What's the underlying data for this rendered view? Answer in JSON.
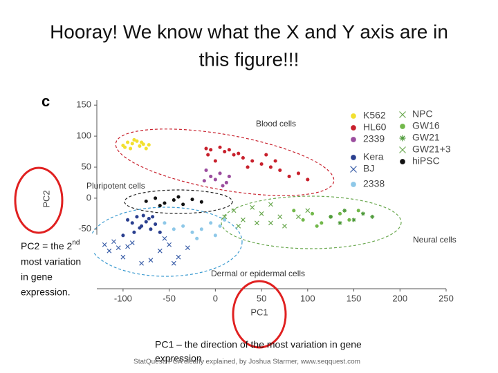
{
  "slide": {
    "title": [
      "Hooray!  We know what the X and Y axis are in",
      "this figure!!!"
    ],
    "left_note": {
      "pre": "PC2 = the 2",
      "sup": "nd",
      "lines": [
        "most variation",
        "in gene",
        "expression."
      ]
    },
    "bottom_note": [
      "PC1 – the direction of the most variation in gene",
      "expression."
    ],
    "footer": "StatQuest: PCA clearly explained, by Joshua Starmer, www.seqquest.com"
  },
  "chart_data": {
    "type": "scatter",
    "panel_label": "c",
    "x_label": "PC1",
    "y_label": "PC2",
    "annotations": [
      "Blood cells",
      "Pluripotent cells",
      "Neural cells",
      "Dermal or epidermal cells"
    ],
    "xlim": [
      -128.4,
      250
    ],
    "ylim": [
      -146,
      158
    ],
    "xticks": [
      -100,
      -50,
      0,
      50,
      100,
      150,
      200,
      250
    ],
    "yticks": [
      150,
      100,
      50,
      0,
      -50
    ],
    "series": [
      {
        "name": "K562",
        "color": "#f2e030",
        "marker": "dot",
        "x": [
          -100,
          -95,
          -90,
          -85,
          -82,
          -78,
          -75,
          -92,
          -88,
          -80,
          -72,
          -98
        ],
        "y": [
          85,
          90,
          88,
          92,
          84,
          87,
          80,
          80,
          94,
          90,
          86,
          82
        ]
      },
      {
        "name": "HL60",
        "color": "#c8202c",
        "marker": "dot",
        "x": [
          -10,
          -5,
          5,
          10,
          15,
          20,
          25,
          -8,
          30,
          40,
          50,
          60,
          70,
          80,
          90,
          100,
          55,
          65,
          0,
          35
        ],
        "y": [
          80,
          78,
          82,
          75,
          78,
          70,
          72,
          70,
          65,
          60,
          55,
          50,
          45,
          35,
          40,
          30,
          70,
          60,
          60,
          50
        ]
      },
      {
        "name": "2339",
        "color": "#9b4d9e",
        "marker": "dot",
        "x": [
          -10,
          -5,
          0,
          5,
          8,
          12,
          -12,
          15
        ],
        "y": [
          45,
          35,
          30,
          40,
          20,
          25,
          28,
          35
        ]
      },
      {
        "name": "Kera",
        "color": "#2a3f8f",
        "marker": "dot",
        "x": [
          -95,
          -90,
          -85,
          -80,
          -75,
          -70,
          -65,
          -88,
          -78,
          -72,
          -82,
          -68,
          -100,
          -60
        ],
        "y": [
          -35,
          -40,
          -30,
          -45,
          -38,
          -50,
          -42,
          -55,
          -28,
          -33,
          -48,
          -30,
          -60,
          -55
        ]
      },
      {
        "name": "BJ",
        "color": "#3a5ea8",
        "marker": "x",
        "x": [
          -120,
          -115,
          -110,
          -105,
          -100,
          -95,
          -90,
          -80,
          -70,
          -60,
          -50,
          -40,
          -30,
          -45,
          -55
        ],
        "y": [
          -75,
          -85,
          -70,
          -80,
          -95,
          -78,
          -72,
          -105,
          -100,
          -85,
          -75,
          -95,
          -80,
          -105,
          -65
        ]
      },
      {
        "name": "2338",
        "color": "#8ec8e8",
        "marker": "dot",
        "x": [
          -55,
          -45,
          -35,
          -25,
          -15,
          -5,
          5,
          10,
          -20,
          0
        ],
        "y": [
          -40,
          -50,
          -45,
          -55,
          -50,
          -40,
          -45,
          -35,
          -65,
          -60
        ]
      },
      {
        "name": "NPC",
        "color": "#6aa84f",
        "marker": "x",
        "x": [
          10,
          20,
          30,
          40,
          50,
          60,
          25,
          45
        ],
        "y": [
          -30,
          -20,
          -35,
          -15,
          -25,
          -10,
          -45,
          -40
        ]
      },
      {
        "name": "GW16",
        "color": "#72b84a",
        "marker": "dot",
        "x": [
          85,
          95,
          105,
          115,
          125,
          135,
          145,
          155,
          110
        ],
        "y": [
          -20,
          -35,
          -25,
          -40,
          -30,
          -25,
          -35,
          -20,
          -45
        ]
      },
      {
        "name": "GW21",
        "color": "#4e9a3a",
        "marker": "star",
        "x": [
          125,
          140,
          150,
          160,
          170,
          135
        ],
        "y": [
          -30,
          -20,
          -35,
          -25,
          -30,
          -40
        ]
      },
      {
        "name": "GW21+3",
        "color": "#6aa84f",
        "marker": "x",
        "x": [
          60,
          70,
          90,
          100,
          75
        ],
        "y": [
          -40,
          -30,
          -30,
          -20,
          -45
        ]
      },
      {
        "name": "hiPSC",
        "color": "#111111",
        "marker": "dot",
        "x": [
          -75,
          -65,
          -55,
          -45,
          -35,
          -25,
          -15,
          -60,
          -40
        ],
        "y": [
          -5,
          0,
          -8,
          -3,
          -10,
          -2,
          -6,
          -12,
          2
        ]
      }
    ]
  }
}
